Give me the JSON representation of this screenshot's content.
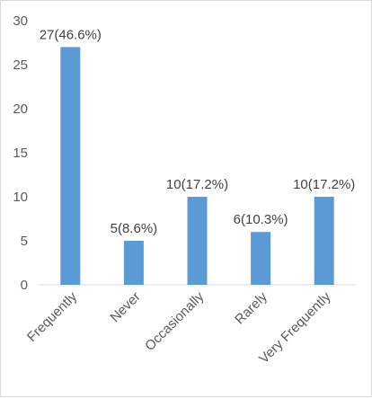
{
  "chart_data": {
    "type": "bar",
    "categories": [
      "Frequently",
      "Never",
      "Occasionally",
      "Rarely",
      "Very Frequently"
    ],
    "values": [
      27,
      5,
      10,
      6,
      10
    ],
    "data_labels": [
      "27(46.6%)",
      "5(8.6%)",
      "10(17.2%)",
      "6(10.3%)",
      "10(17.2%)"
    ],
    "y_ticks": [
      "0",
      "5",
      "10",
      "15",
      "20",
      "25",
      "30"
    ],
    "ylim": [
      0,
      30
    ],
    "bar_color": "#5b9bd5",
    "grid": false,
    "legend": false,
    "title": "",
    "xlabel": "",
    "ylabel": ""
  }
}
